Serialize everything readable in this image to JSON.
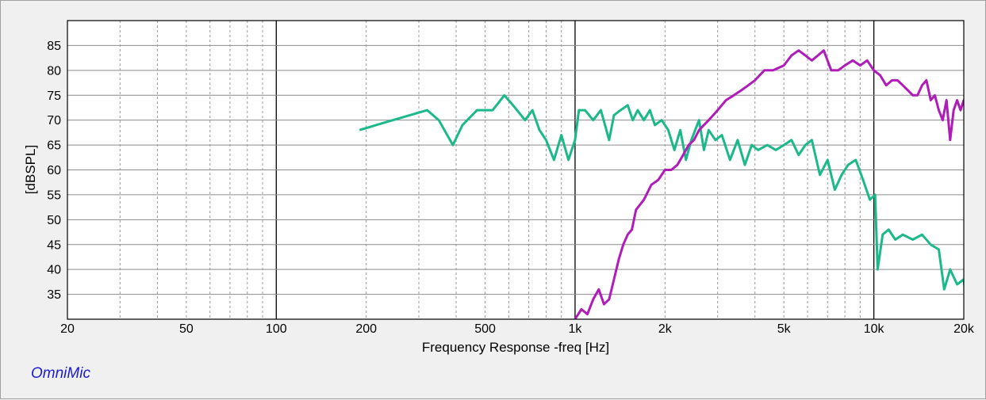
{
  "brand_label": "OmniMic",
  "chart_data": {
    "type": "line",
    "title": "",
    "xlabel": "Frequency Response -freq [Hz]",
    "ylabel": "[dBSPL]",
    "x_scale": "log",
    "xlim": [
      20,
      20000
    ],
    "ylim": [
      30,
      90
    ],
    "grid": true,
    "x_ticks": [
      {
        "value": 20,
        "label": "20"
      },
      {
        "value": 50,
        "label": "50"
      },
      {
        "value": 100,
        "label": "100"
      },
      {
        "value": 200,
        "label": "200"
      },
      {
        "value": 500,
        "label": "500"
      },
      {
        "value": 1000,
        "label": "1k"
      },
      {
        "value": 2000,
        "label": "2k"
      },
      {
        "value": 5000,
        "label": "5k"
      },
      {
        "value": 10000,
        "label": "10k"
      },
      {
        "value": 20000,
        "label": "20k"
      }
    ],
    "y_ticks": [
      35,
      40,
      45,
      50,
      55,
      60,
      65,
      70,
      75,
      80,
      85
    ],
    "series": [
      {
        "color": "#1bb98a",
        "x": [
          190,
          230,
          280,
          320,
          350,
          390,
          420,
          470,
          530,
          580,
          620,
          680,
          720,
          760,
          800,
          850,
          900,
          950,
          1000,
          1030,
          1080,
          1150,
          1220,
          1300,
          1350,
          1420,
          1500,
          1560,
          1620,
          1700,
          1780,
          1850,
          1950,
          2050,
          2150,
          2250,
          2350,
          2450,
          2600,
          2700,
          2800,
          2950,
          3100,
          3300,
          3500,
          3700,
          3900,
          4100,
          4400,
          4700,
          5000,
          5300,
          5600,
          5900,
          6200,
          6600,
          7000,
          7400,
          7800,
          8200,
          8700,
          9200,
          9700,
          10100,
          10300,
          10700,
          11200,
          11800,
          12500,
          13500,
          14500,
          15500,
          16500,
          17200,
          18000,
          19000,
          20000,
          20500
        ],
        "y": [
          68,
          69.5,
          71,
          72,
          70,
          65,
          69,
          72,
          72,
          75,
          73,
          70,
          72,
          68,
          66,
          62,
          67,
          62,
          66,
          72,
          72,
          70,
          72,
          66,
          71,
          72,
          73,
          70,
          72,
          70,
          72,
          69,
          70,
          68,
          64,
          68,
          62,
          66,
          70,
          64,
          68,
          66,
          67,
          62,
          66,
          61,
          65,
          64,
          65,
          64,
          65,
          66,
          63,
          65,
          66,
          59,
          62,
          56,
          59,
          61,
          62,
          58,
          54,
          55,
          40,
          47,
          48,
          46,
          47,
          46,
          47,
          45,
          44,
          36,
          40,
          37,
          38,
          32
        ]
      },
      {
        "color": "#b01cb8",
        "x": [
          1000,
          1050,
          1100,
          1150,
          1200,
          1250,
          1300,
          1350,
          1400,
          1450,
          1500,
          1550,
          1600,
          1700,
          1800,
          1900,
          2000,
          2100,
          2200,
          2300,
          2400,
          2500,
          2600,
          2800,
          3000,
          3200,
          3400,
          3600,
          3800,
          4000,
          4300,
          4600,
          5000,
          5300,
          5600,
          5900,
          6200,
          6500,
          6800,
          7200,
          7600,
          8000,
          8500,
          9000,
          9500,
          10000,
          10500,
          11000,
          11500,
          12000,
          12500,
          13000,
          13500,
          14000,
          14500,
          15000,
          15500,
          16000,
          16500,
          17000,
          17500,
          18000,
          18500,
          19000,
          19500,
          20000,
          20500
        ],
        "y": [
          30,
          32,
          31,
          34,
          36,
          33,
          34,
          38,
          42,
          45,
          47,
          48,
          52,
          54,
          57,
          58,
          60,
          60,
          61,
          63,
          65,
          66,
          68,
          70,
          72,
          74,
          75,
          76,
          77,
          78,
          80,
          80,
          81,
          83,
          84,
          83,
          82,
          83,
          84,
          80,
          80,
          81,
          82,
          81,
          82,
          80,
          79,
          77,
          78,
          78,
          77,
          76,
          75,
          75,
          77,
          78,
          74,
          75,
          72,
          70,
          74,
          66,
          72,
          74,
          72,
          74,
          70
        ]
      }
    ]
  }
}
